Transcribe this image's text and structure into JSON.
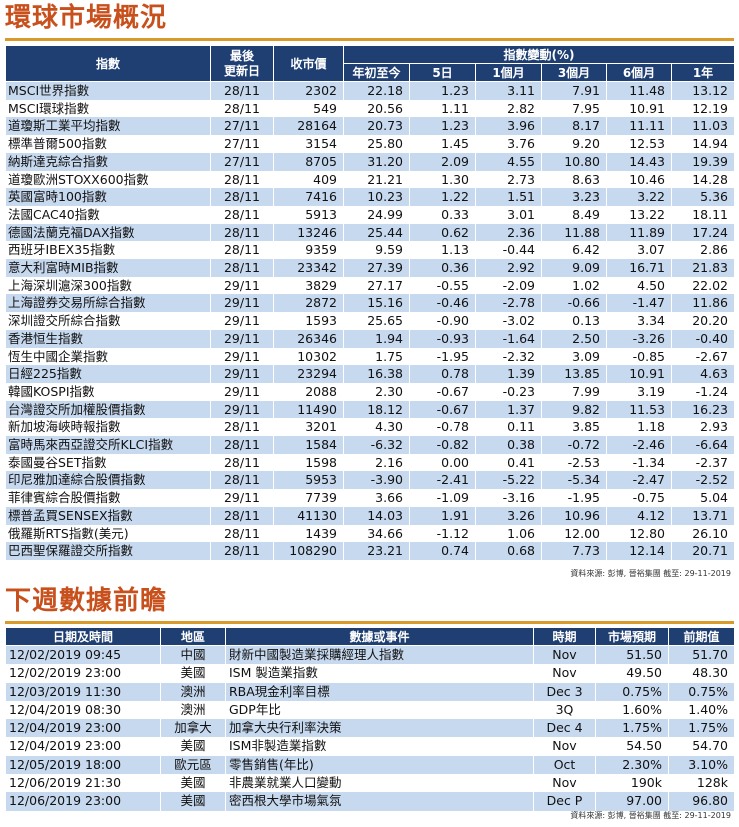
{
  "market": {
    "title": "環球市場概況",
    "headers": {
      "index": "指數",
      "last_update": "最後\n更新日",
      "close": "收市價",
      "change_group": "指數變動(%)",
      "periods": [
        "年初至今",
        "5日",
        "1個月",
        "3個月",
        "6個月",
        "1年"
      ]
    },
    "rows": [
      {
        "name": "MSCI世界指數",
        "date": "28/11",
        "close": "2302",
        "ytd": "22.18",
        "d5": "1.23",
        "m1": "3.11",
        "m3": "7.91",
        "m6": "11.48",
        "y1": "13.12"
      },
      {
        "name": "MSCI環球指數",
        "date": "28/11",
        "close": "549",
        "ytd": "20.56",
        "d5": "1.11",
        "m1": "2.82",
        "m3": "7.95",
        "m6": "10.91",
        "y1": "12.19"
      },
      {
        "name": "道瓊斯工業平均指數",
        "date": "27/11",
        "close": "28164",
        "ytd": "20.73",
        "d5": "1.23",
        "m1": "3.96",
        "m3": "8.17",
        "m6": "11.11",
        "y1": "11.03"
      },
      {
        "name": "標準普爾500指數",
        "date": "27/11",
        "close": "3154",
        "ytd": "25.80",
        "d5": "1.45",
        "m1": "3.76",
        "m3": "9.20",
        "m6": "12.53",
        "y1": "14.94"
      },
      {
        "name": "納斯達克綜合指數",
        "date": "27/11",
        "close": "8705",
        "ytd": "31.20",
        "d5": "2.09",
        "m1": "4.55",
        "m3": "10.80",
        "m6": "14.43",
        "y1": "19.39"
      },
      {
        "name": "道瓊歐洲STOXX600指數",
        "date": "28/11",
        "close": "409",
        "ytd": "21.21",
        "d5": "1.30",
        "m1": "2.73",
        "m3": "8.63",
        "m6": "10.46",
        "y1": "14.28"
      },
      {
        "name": "英國富時100指數",
        "date": "28/11",
        "close": "7416",
        "ytd": "10.23",
        "d5": "1.22",
        "m1": "1.51",
        "m3": "3.23",
        "m6": "3.22",
        "y1": "5.36"
      },
      {
        "name": "法國CAC40指數",
        "date": "28/11",
        "close": "5913",
        "ytd": "24.99",
        "d5": "0.33",
        "m1": "3.01",
        "m3": "8.49",
        "m6": "13.22",
        "y1": "18.11"
      },
      {
        "name": "德國法蘭克福DAX指數",
        "date": "28/11",
        "close": "13246",
        "ytd": "25.44",
        "d5": "0.62",
        "m1": "2.36",
        "m3": "11.88",
        "m6": "11.89",
        "y1": "17.24"
      },
      {
        "name": "西班牙IBEX35指數",
        "date": "28/11",
        "close": "9359",
        "ytd": "9.59",
        "d5": "1.13",
        "m1": "-0.44",
        "m3": "6.42",
        "m6": "3.07",
        "y1": "2.86"
      },
      {
        "name": "意大利富時MIB指數",
        "date": "28/11",
        "close": "23342",
        "ytd": "27.39",
        "d5": "0.36",
        "m1": "2.92",
        "m3": "9.09",
        "m6": "16.71",
        "y1": "21.83"
      },
      {
        "name": "上海深圳滬深300指數",
        "date": "29/11",
        "close": "3829",
        "ytd": "27.17",
        "d5": "-0.55",
        "m1": "-2.09",
        "m3": "1.02",
        "m6": "4.50",
        "y1": "22.02"
      },
      {
        "name": "上海證券交易所綜合指數",
        "date": "29/11",
        "close": "2872",
        "ytd": "15.16",
        "d5": "-0.46",
        "m1": "-2.78",
        "m3": "-0.66",
        "m6": "-1.47",
        "y1": "11.86"
      },
      {
        "name": "深圳證交所綜合指數",
        "date": "29/11",
        "close": "1593",
        "ytd": "25.65",
        "d5": "-0.90",
        "m1": "-3.02",
        "m3": "0.13",
        "m6": "3.34",
        "y1": "20.20"
      },
      {
        "name": "香港恒生指數",
        "date": "29/11",
        "close": "26346",
        "ytd": "1.94",
        "d5": "-0.93",
        "m1": "-1.64",
        "m3": "2.50",
        "m6": "-3.26",
        "y1": "-0.40"
      },
      {
        "name": "恆生中國企業指數",
        "date": "29/11",
        "close": "10302",
        "ytd": "1.75",
        "d5": "-1.95",
        "m1": "-2.32",
        "m3": "3.09",
        "m6": "-0.85",
        "y1": "-2.67"
      },
      {
        "name": "日經225指數",
        "date": "29/11",
        "close": "23294",
        "ytd": "16.38",
        "d5": "0.78",
        "m1": "1.39",
        "m3": "13.85",
        "m6": "10.91",
        "y1": "4.63"
      },
      {
        "name": "韓國KOSPI指數",
        "date": "29/11",
        "close": "2088",
        "ytd": "2.30",
        "d5": "-0.67",
        "m1": "-0.23",
        "m3": "7.99",
        "m6": "3.19",
        "y1": "-1.24"
      },
      {
        "name": "台灣證交所加權股價指數",
        "date": "29/11",
        "close": "11490",
        "ytd": "18.12",
        "d5": "-0.67",
        "m1": "1.37",
        "m3": "9.82",
        "m6": "11.53",
        "y1": "16.23"
      },
      {
        "name": "新加坡海峽時報指數",
        "date": "28/11",
        "close": "3201",
        "ytd": "4.30",
        "d5": "-0.78",
        "m1": "0.11",
        "m3": "3.85",
        "m6": "1.18",
        "y1": "2.93"
      },
      {
        "name": "富時馬來西亞證交所KLCI指數",
        "date": "28/11",
        "close": "1584",
        "ytd": "-6.32",
        "d5": "-0.82",
        "m1": "0.38",
        "m3": "-0.72",
        "m6": "-2.46",
        "y1": "-6.64"
      },
      {
        "name": "泰國曼谷SET指數",
        "date": "28/11",
        "close": "1598",
        "ytd": "2.16",
        "d5": "0.00",
        "m1": "0.41",
        "m3": "-2.53",
        "m6": "-1.34",
        "y1": "-2.37"
      },
      {
        "name": "印尼雅加達綜合股價指數",
        "date": "28/11",
        "close": "5953",
        "ytd": "-3.90",
        "d5": "-2.41",
        "m1": "-5.22",
        "m3": "-5.34",
        "m6": "-2.47",
        "y1": "-2.52"
      },
      {
        "name": "菲律賓綜合股價指數",
        "date": "29/11",
        "close": "7739",
        "ytd": "3.66",
        "d5": "-1.09",
        "m1": "-3.16",
        "m3": "-1.95",
        "m6": "-0.75",
        "y1": "5.04"
      },
      {
        "name": "標普孟買SENSEX指數",
        "date": "28/11",
        "close": "41130",
        "ytd": "14.03",
        "d5": "1.91",
        "m1": "3.26",
        "m3": "10.96",
        "m6": "4.12",
        "y1": "13.71"
      },
      {
        "name": "俄羅斯RTS指數(美元)",
        "date": "28/11",
        "close": "1439",
        "ytd": "34.66",
        "d5": "-1.12",
        "m1": "1.06",
        "m3": "12.00",
        "m6": "12.80",
        "y1": "26.10"
      },
      {
        "name": "巴西聖保羅證交所指數",
        "date": "28/11",
        "close": "108290",
        "ytd": "23.21",
        "d5": "0.74",
        "m1": "0.68",
        "m3": "7.73",
        "m6": "12.14",
        "y1": "20.71"
      }
    ],
    "source": "資料來源: 彭博, 晉裕集團 截至: 29-11-2019"
  },
  "calendar": {
    "title": "下週數據前瞻",
    "headers": [
      "日期及時間",
      "地區",
      "數據或事件",
      "時期",
      "市場預期",
      "前期值"
    ],
    "rows": [
      {
        "datetime": "12/02/2019 09:45",
        "region": "中國",
        "event": "財新中國製造業採購經理人指數",
        "period": "Nov",
        "forecast": "51.50",
        "previous": "51.70"
      },
      {
        "datetime": "12/02/2019 23:00",
        "region": "美國",
        "event": "ISM 製造業指數",
        "period": "Nov",
        "forecast": "49.50",
        "previous": "48.30"
      },
      {
        "datetime": "12/03/2019 11:30",
        "region": "澳洲",
        "event": "RBA現金利率目標",
        "period": "Dec 3",
        "forecast": "0.75%",
        "previous": "0.75%"
      },
      {
        "datetime": "12/04/2019 08:30",
        "region": "澳洲",
        "event": "GDP年比",
        "period": "3Q",
        "forecast": "1.60%",
        "previous": "1.40%"
      },
      {
        "datetime": "12/04/2019 23:00",
        "region": "加拿大",
        "event": "加拿大央行利率決策",
        "period": "Dec 4",
        "forecast": "1.75%",
        "previous": "1.75%"
      },
      {
        "datetime": "12/04/2019 23:00",
        "region": "美國",
        "event": "ISM非製造業指數",
        "period": "Nov",
        "forecast": "54.50",
        "previous": "54.70"
      },
      {
        "datetime": "12/05/2019 18:00",
        "region": "歐元區",
        "event": "零售銷售(年比)",
        "period": "Oct",
        "forecast": "2.30%",
        "previous": "3.10%"
      },
      {
        "datetime": "12/06/2019 21:30",
        "region": "美國",
        "event": "非農業就業人口變動",
        "period": "Nov",
        "forecast": "190k",
        "previous": "128k"
      },
      {
        "datetime": "12/06/2019 23:00",
        "region": "美國",
        "event": "密西根大學市場氣氛",
        "period": "Dec P",
        "forecast": "97.00",
        "previous": "96.80"
      }
    ],
    "source": "資料來源: 彭博, 晉裕集團 截至: 29-11-2019"
  }
}
